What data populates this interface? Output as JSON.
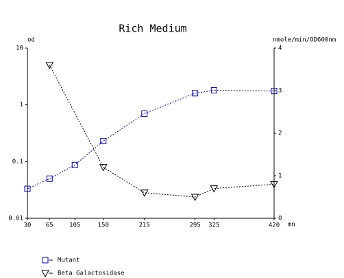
{
  "chart_data": {
    "type": "line",
    "title": "Rich Medium",
    "y_label": "od",
    "y2_label": "nmole/min/OD600nm",
    "x_label": "mn",
    "y_scale": "log",
    "xlim": [
      30,
      420
    ],
    "xticks": [
      30,
      65,
      105,
      150,
      215,
      295,
      325,
      420
    ],
    "ylim": [
      0.01,
      10
    ],
    "yticks": [
      0.01,
      0.1,
      1,
      10
    ],
    "y2lim": [
      0,
      4
    ],
    "y2ticks": [
      0,
      1,
      2,
      3,
      4
    ],
    "series": [
      {
        "name": "Mutant",
        "color": "#0000cc",
        "marker": "square",
        "x": [
          30,
          65,
          105,
          150,
          215,
          295,
          325,
          420
        ],
        "values": [
          0.033,
          0.05,
          0.087,
          0.23,
          0.7,
          1.6,
          1.8,
          1.75
        ]
      },
      {
        "name": "Beta Galactosidase",
        "color": "#000000",
        "marker": "triangle-down",
        "axis": "y2",
        "x": [
          65,
          150,
          215,
          295,
          325,
          420
        ],
        "values": [
          3.6,
          1.2,
          0.6,
          0.5,
          0.7,
          0.8
        ]
      }
    ]
  }
}
